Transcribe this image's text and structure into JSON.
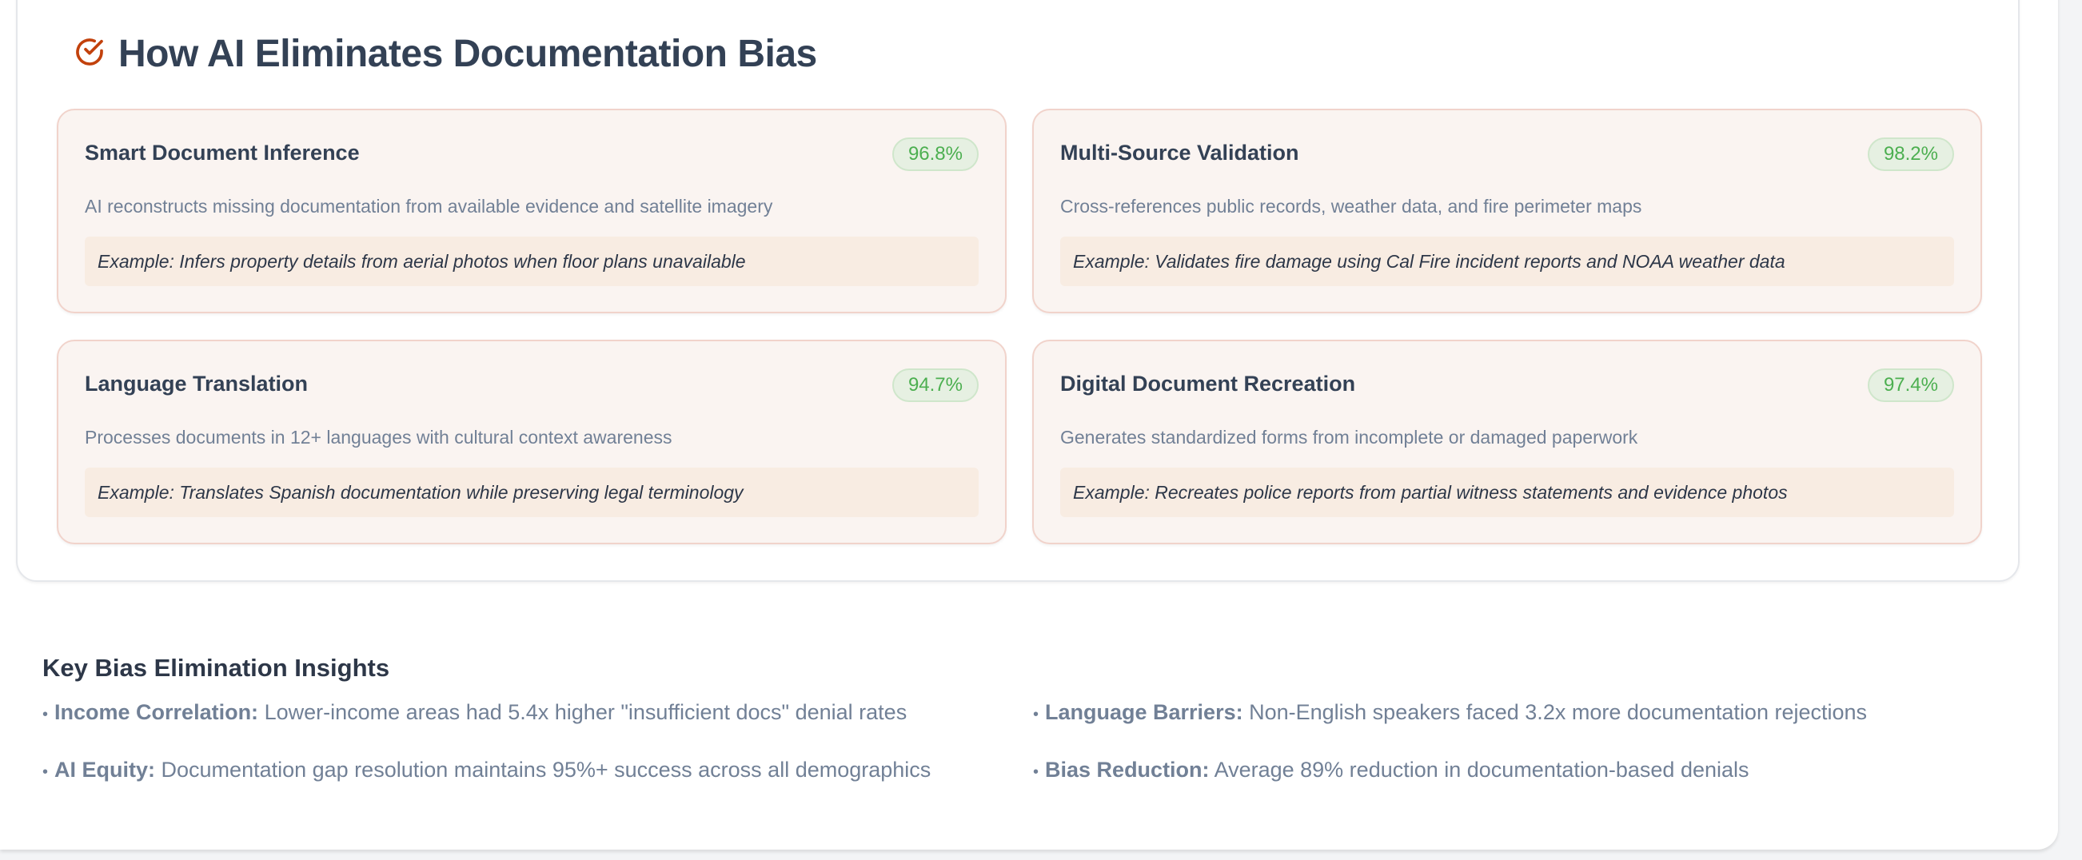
{
  "section": {
    "title": "How AI Eliminates Documentation Bias",
    "icon": "check-circle-icon",
    "accent_color": "#c2410c",
    "cards": [
      {
        "title": "Smart Document Inference",
        "badge": "96.8%",
        "description": "AI reconstructs missing documentation from available evidence and satellite imagery",
        "example": "Example: Infers property details from aerial photos when floor plans unavailable"
      },
      {
        "title": "Multi-Source Validation",
        "badge": "98.2%",
        "description": "Cross-references public records, weather data, and fire perimeter maps",
        "example": "Example: Validates fire damage using Cal Fire incident reports and NOAA weather data"
      },
      {
        "title": "Language Translation",
        "badge": "94.7%",
        "description": "Processes documents in 12+ languages with cultural context awareness",
        "example": "Example: Translates Spanish documentation while preserving legal terminology"
      },
      {
        "title": "Digital Document Recreation",
        "badge": "97.4%",
        "description": "Generates standardized forms from incomplete or damaged paperwork",
        "example": "Example: Recreates police reports from partial witness statements and evidence photos"
      }
    ]
  },
  "insights": {
    "title": "Key Bias Elimination Insights",
    "items": [
      {
        "label": "Income Correlation:",
        "text": "Lower-income areas had 5.4x higher \"insufficient docs\" denial rates"
      },
      {
        "label": "Language Barriers:",
        "text": "Non-English speakers faced 3.2x more documentation rejections"
      },
      {
        "label": "AI Equity:",
        "text": "Documentation gap resolution maintains 95%+ success across all demographics"
      },
      {
        "label": "Bias Reduction:",
        "text": "Average 89% reduction in documentation-based denials"
      }
    ]
  }
}
